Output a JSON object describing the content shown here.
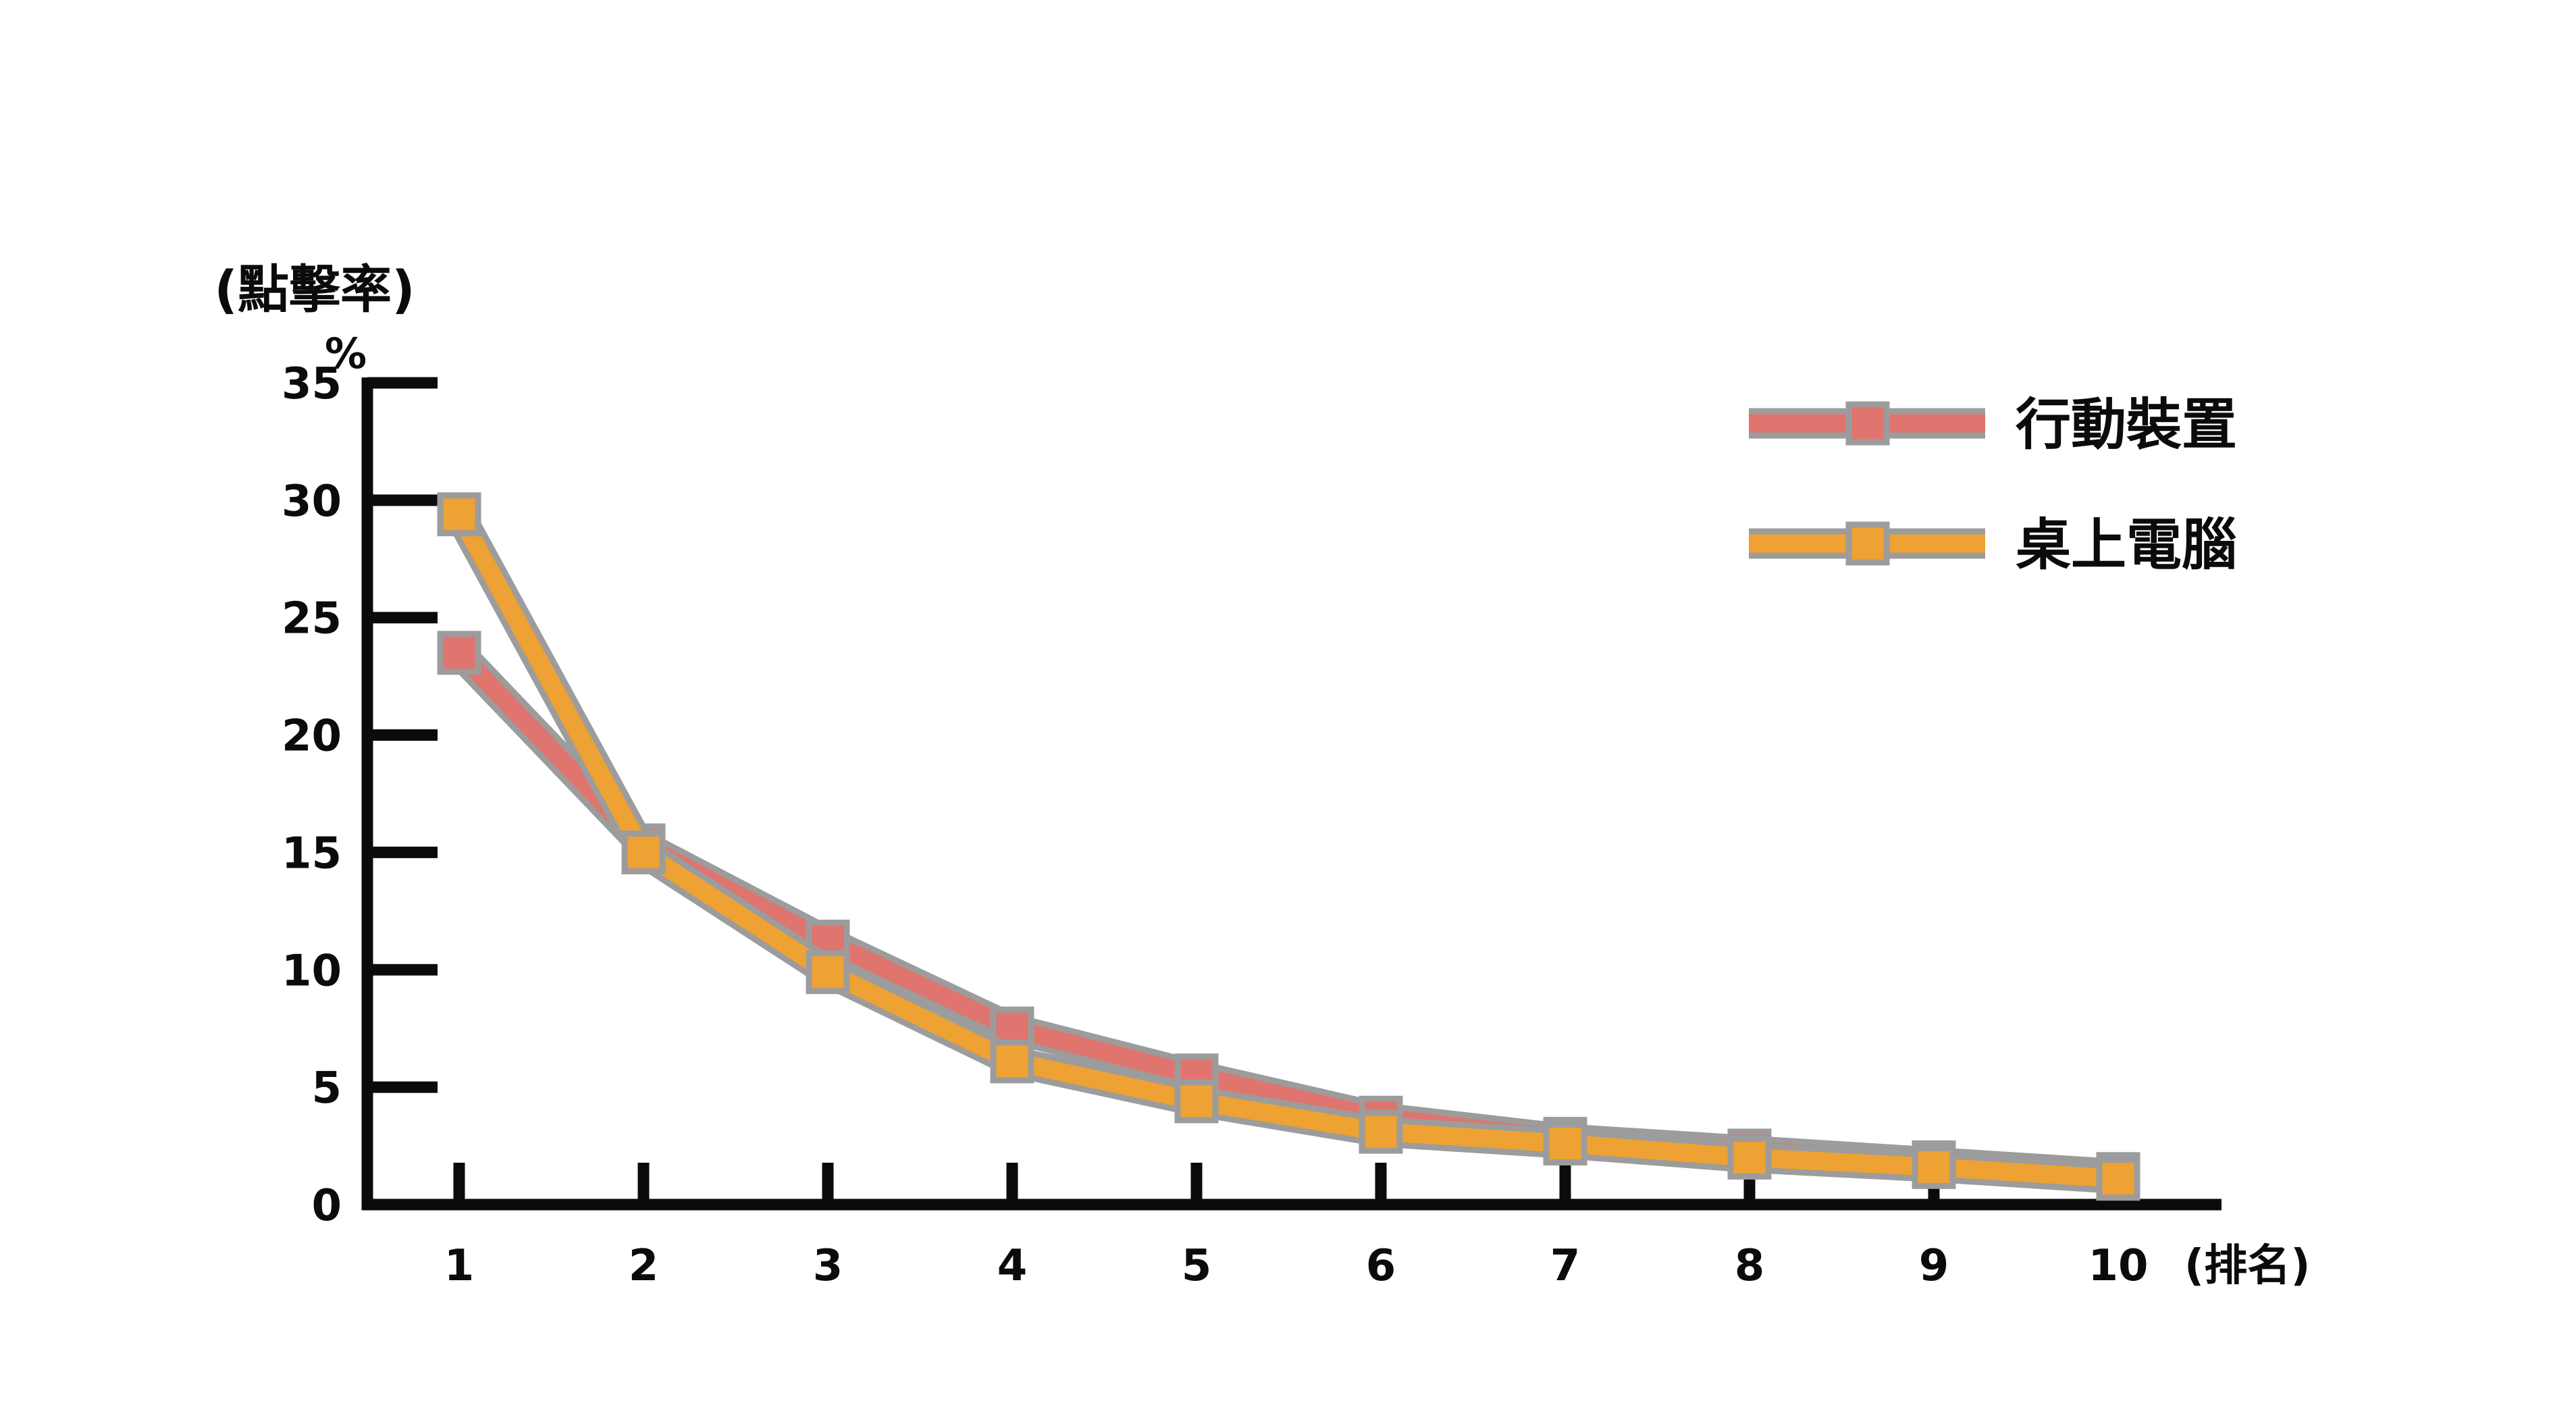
{
  "chart_data": {
    "type": "line",
    "title": "",
    "ylabel": {
      "line1": "(點擊率)",
      "line2": "%"
    },
    "xlabel": "(排名)",
    "x": [
      1,
      2,
      3,
      4,
      5,
      6,
      7,
      8,
      9,
      10
    ],
    "yticks": [
      35,
      30,
      25,
      20,
      15,
      10,
      5,
      0
    ],
    "ylim": [
      0,
      35
    ],
    "grid": false,
    "legend_position": "top-right",
    "marker": "square",
    "series": [
      {
        "name": "行動裝置",
        "color": "#E0746E",
        "values": [
          23.5,
          15.3,
          11.2,
          7.5,
          5.5,
          3.7,
          2.8,
          2.3,
          1.8,
          1.3
        ]
      },
      {
        "name": "桌上電腦",
        "color": "#EEA233",
        "values": [
          29.4,
          15.0,
          9.9,
          6.1,
          4.4,
          3.1,
          2.6,
          2.0,
          1.6,
          1.1
        ]
      }
    ],
    "colors": {
      "axis": "#0B0B0B",
      "text": "#0B0B0B",
      "marker_outline": "#9C9C9C",
      "background": "#FFFFFF"
    }
  }
}
